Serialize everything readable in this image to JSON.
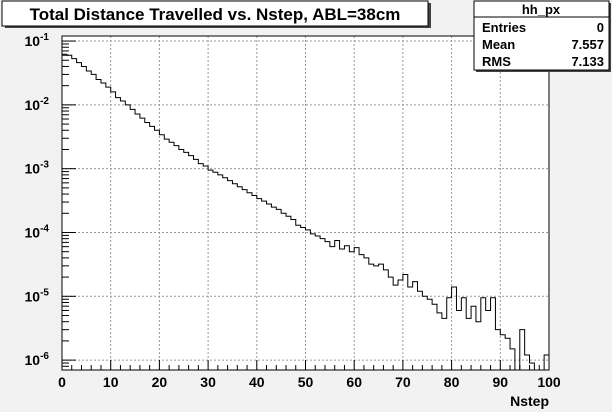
{
  "chart_data": {
    "type": "histogram",
    "title": "Total Distance Travelled vs. Nstep, ABL=38cm",
    "xlabel": "Nstep",
    "ylabel": "",
    "x_axis": {
      "range": [
        0,
        100
      ],
      "scale": "linear",
      "major_ticks": [
        0,
        10,
        20,
        30,
        40,
        50,
        60,
        70,
        80,
        90,
        100
      ],
      "tick_labels": [
        "0",
        "10",
        "20",
        "30",
        "40",
        "50",
        "60",
        "70",
        "80",
        "90",
        "100"
      ]
    },
    "y_axis": {
      "range": [
        7e-07,
        0.12
      ],
      "scale": "log",
      "major_ticks": [
        1e-06,
        1e-05,
        0.0001,
        0.001,
        0.01,
        0.1
      ],
      "tick_labels": [
        {
          "base": "10",
          "exp": "-6"
        },
        {
          "base": "10",
          "exp": "-5"
        },
        {
          "base": "10",
          "exp": "-4"
        },
        {
          "base": "10",
          "exp": "-3"
        },
        {
          "base": "10",
          "exp": "-2"
        },
        {
          "base": "10",
          "exp": "-1"
        }
      ]
    },
    "grid": true,
    "bin_width": 1,
    "values": [
      0.062,
      0.06,
      0.053,
      0.046,
      0.04,
      0.034,
      0.03,
      0.025,
      0.022,
      0.019,
      0.016,
      0.013,
      0.0115,
      0.01,
      0.0085,
      0.0072,
      0.0062,
      0.0053,
      0.0046,
      0.004,
      0.0034,
      0.0029,
      0.0026,
      0.0023,
      0.002,
      0.0018,
      0.0016,
      0.0014,
      0.0012,
      0.0011,
      0.00095,
      0.00088,
      0.0008,
      0.00072,
      0.00065,
      0.00058,
      0.00052,
      0.00047,
      0.00042,
      0.00038,
      0.00034,
      0.00031,
      0.00028,
      0.00025,
      0.00023,
      0.0002,
      0.00018,
      0.00016,
      0.00013,
      0.00012,
      0.00011,
      9.5e-05,
      8.8e-05,
      8e-05,
      7.2e-05,
      6e-05,
      7.5e-05,
      5.5e-05,
      6.2e-05,
      5e-05,
      5.8e-05,
      4.5e-05,
      4e-05,
      3.2e-05,
      3e-05,
      3.2e-05,
      2.6e-05,
      2e-05,
      1.5e-05,
      1.8e-05,
      2.2e-05,
      1.4e-05,
      1.7e-05,
      1.2e-05,
      1e-05,
      9e-06,
      7.5e-06,
      5.5e-06,
      4.5e-06,
      9.5e-06,
      1.4e-05,
      6e-06,
      9.5e-06,
      4.5e-06,
      7e-06,
      4e-06,
      9.5e-06,
      6e-06,
      9.5e-06,
      3e-06,
      2.5e-06,
      2.2e-06,
      1.5e-06,
      7e-07,
      3e-06,
      1.2e-06,
      9e-07,
      7e-07,
      7e-07,
      1.2e-06
    ]
  },
  "stats_box": {
    "title": "hh_px",
    "rows": [
      {
        "label": "Entries",
        "value": "0"
      },
      {
        "label": "Mean",
        "value": "7.557"
      },
      {
        "label": "RMS",
        "value": "7.133"
      }
    ]
  },
  "colors": {
    "canvas_background": "#f2f2f2",
    "frame_background": "#ffffff",
    "line": "#000000",
    "grid": "#999999",
    "title_box": "#ffffff"
  }
}
